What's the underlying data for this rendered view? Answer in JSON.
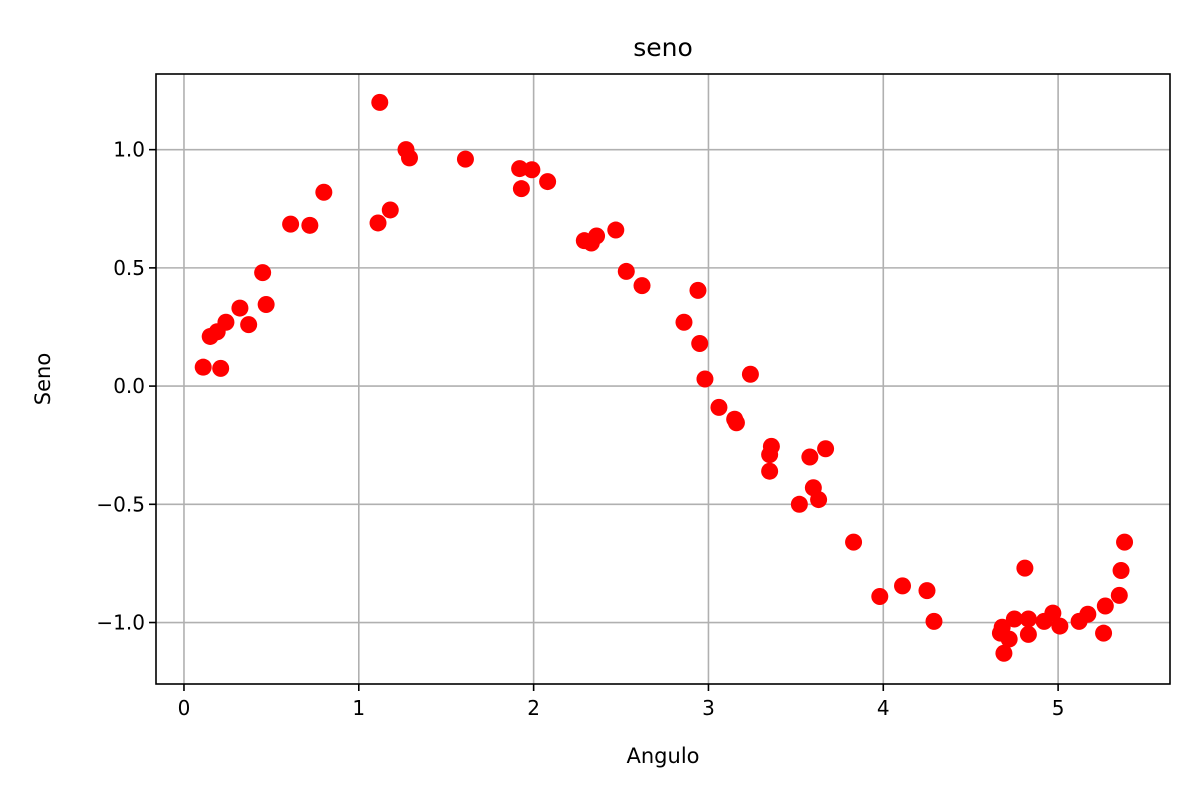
{
  "chart_data": {
    "type": "scatter",
    "title": "seno",
    "xlabel": "Angulo",
    "ylabel": "Seno",
    "xlim": [
      -0.16,
      5.64
    ],
    "ylim": [
      -1.26,
      1.32
    ],
    "xticks": [
      0,
      1,
      2,
      3,
      4,
      5
    ],
    "xtick_labels": [
      "0",
      "1",
      "2",
      "3",
      "4",
      "5"
    ],
    "yticks": [
      -1.0,
      -0.5,
      0.0,
      0.5,
      1.0
    ],
    "ytick_labels": [
      "−1.0",
      "−0.5",
      "0.0",
      "0.5",
      "1.0"
    ],
    "grid": true,
    "marker_color": "#ff0000",
    "series": [
      {
        "x": [
          0.11,
          0.15,
          0.19,
          0.21,
          0.24,
          0.32,
          0.37,
          0.45,
          0.47,
          0.61,
          0.72,
          0.8,
          1.11,
          1.12,
          1.18,
          1.27,
          1.29,
          1.61,
          1.92,
          1.93,
          1.99,
          2.08,
          2.29,
          2.33,
          2.36,
          2.47,
          2.53,
          2.62,
          2.86,
          2.94,
          2.95,
          2.98,
          3.06,
          3.15,
          3.16,
          3.24,
          3.35,
          3.35,
          3.36,
          3.52,
          3.58,
          3.6,
          3.63,
          3.67,
          3.83,
          3.98,
          4.11,
          4.25,
          4.29,
          4.67,
          4.68,
          4.69,
          4.72,
          4.75,
          4.81,
          4.83,
          4.83,
          4.92,
          4.97,
          5.01,
          5.12,
          5.17,
          5.26,
          5.27,
          5.35,
          5.36,
          5.38
        ],
        "y": [
          0.08,
          0.21,
          0.23,
          0.075,
          0.27,
          0.33,
          0.26,
          0.48,
          0.345,
          0.685,
          0.68,
          0.82,
          0.69,
          1.2,
          0.745,
          1.0,
          0.965,
          0.96,
          0.92,
          0.835,
          0.915,
          0.865,
          0.615,
          0.605,
          0.635,
          0.66,
          0.485,
          0.425,
          0.27,
          0.405,
          0.18,
          0.03,
          -0.09,
          -0.14,
          -0.155,
          0.05,
          -0.36,
          -0.29,
          -0.255,
          -0.5,
          -0.3,
          -0.43,
          -0.48,
          -0.265,
          -0.66,
          -0.89,
          -0.845,
          -0.865,
          -0.995,
          -1.045,
          -1.02,
          -1.13,
          -1.07,
          -0.985,
          -0.77,
          -1.05,
          -0.985,
          -0.995,
          -0.96,
          -1.015,
          -0.995,
          -0.965,
          -1.045,
          -0.93,
          -0.885,
          -0.78,
          -0.66
        ]
      }
    ]
  }
}
